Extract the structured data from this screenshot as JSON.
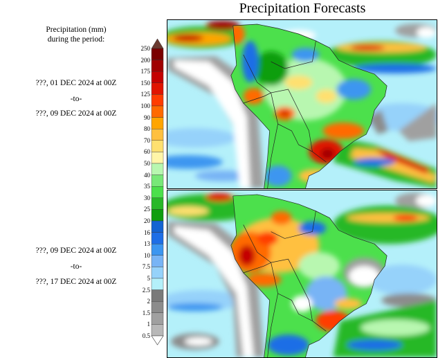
{
  "title": "Precipitation Forecasts",
  "legend": {
    "heading_line1": "Precipitation (mm)",
    "heading_line2": "during the period:",
    "levels": [
      "250",
      "200",
      "175",
      "150",
      "125",
      "100",
      "90",
      "80",
      "70",
      "60",
      "50",
      "40",
      "35",
      "30",
      "25",
      "20",
      "16",
      "13",
      "10",
      "7.5",
      "5",
      "2.5",
      "2",
      "1.5",
      "1",
      "0.5"
    ],
    "colors": [
      "#7a0000",
      "#a00000",
      "#c40000",
      "#e01400",
      "#ff3c00",
      "#ff6a00",
      "#ffa500",
      "#ffc040",
      "#ffe070",
      "#fff5a8",
      "#b8f7b0",
      "#78e878",
      "#4ce04c",
      "#28b828",
      "#0f9e0f",
      "#1464d2",
      "#1e6ee6",
      "#3c96f0",
      "#78b4f5",
      "#96d2fa",
      "#b4f0fa",
      "#7a7a7a",
      "#8c8c8c",
      "#a0a0a0",
      "#b8b8b8"
    ],
    "over_color": "#6b3a30",
    "under_color": "#ffffff"
  },
  "periods": [
    {
      "start": "???, 01 DEC 2024 at 00Z",
      "sep": "-to-",
      "end": "???, 09 DEC 2024 at 00Z"
    },
    {
      "start": "???, 09 DEC 2024 at 00Z",
      "sep": "-to-",
      "end": "???, 17 DEC 2024 at 00Z"
    }
  ]
}
